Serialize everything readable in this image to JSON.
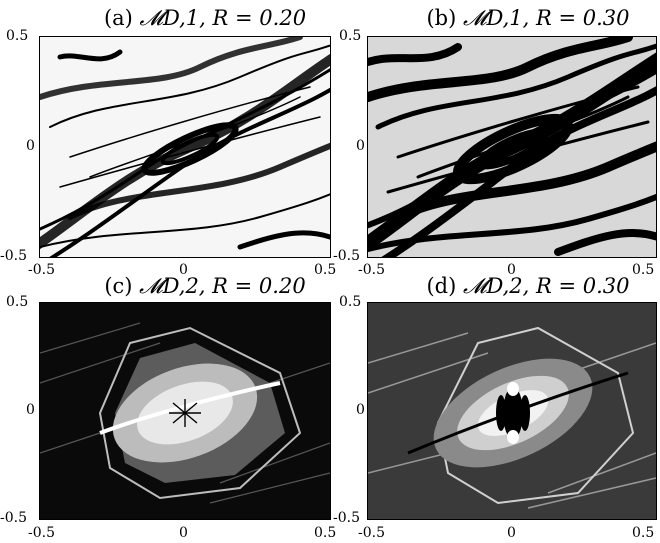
{
  "figure": {
    "panels": [
      {
        "label": "(a)",
        "map": "𝓜D,1,",
        "r_text": "R = 0.20",
        "style": "light"
      },
      {
        "label": "(b)",
        "map": "𝓜D,1,",
        "r_text": "R = 0.30",
        "style": "medium"
      },
      {
        "label": "(c)",
        "map": "𝓜D,2,",
        "r_text": "R = 0.20",
        "style": "dark"
      },
      {
        "label": "(d)",
        "map": "𝓜D,2,",
        "r_text": "R = 0.30",
        "style": "dark2"
      }
    ],
    "x_ticks": [
      "-0.5",
      "0",
      "0.5"
    ],
    "y_ticks": [
      "0.5",
      "0",
      "-0.5"
    ]
  }
}
